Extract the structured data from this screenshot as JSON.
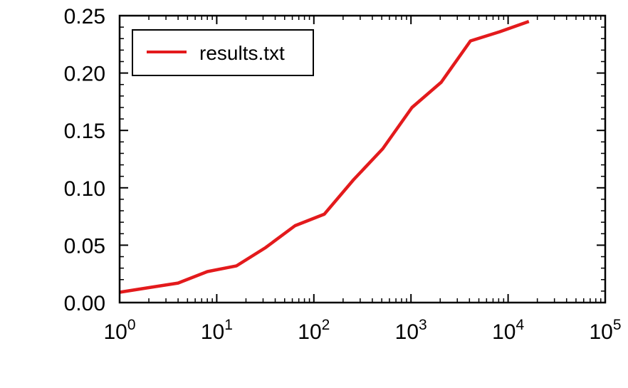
{
  "chart_data": {
    "type": "line",
    "x_scale": "log",
    "xlim": [
      1,
      100000
    ],
    "ylim": [
      0,
      0.25
    ],
    "x_ticks": [
      {
        "base": "10",
        "exp": "0"
      },
      {
        "base": "10",
        "exp": "1"
      },
      {
        "base": "10",
        "exp": "2"
      },
      {
        "base": "10",
        "exp": "3"
      },
      {
        "base": "10",
        "exp": "4"
      },
      {
        "base": "10",
        "exp": "5"
      }
    ],
    "y_ticks": [
      "0.00",
      "0.05",
      "0.10",
      "0.15",
      "0.20",
      "0.25"
    ],
    "legend_position": "top-left",
    "grid": false,
    "series": [
      {
        "name": "results.txt",
        "color": "#e31a1c",
        "x": [
          1,
          2,
          4,
          8,
          16,
          32,
          64,
          128,
          256,
          512,
          1024,
          2048,
          4096,
          8192,
          16384
        ],
        "y": [
          0.009,
          0.013,
          0.017,
          0.027,
          0.032,
          0.048,
          0.067,
          0.077,
          0.107,
          0.134,
          0.17,
          0.192,
          0.228,
          0.236,
          0.245
        ]
      }
    ]
  }
}
